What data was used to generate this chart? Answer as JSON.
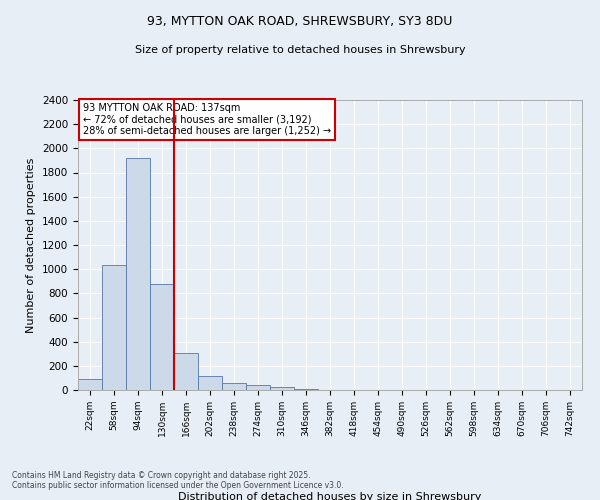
{
  "title_line1": "93, MYTTON OAK ROAD, SHREWSBURY, SY3 8DU",
  "title_line2": "Size of property relative to detached houses in Shrewsbury",
  "xlabel": "Distribution of detached houses by size in Shrewsbury",
  "ylabel": "Number of detached properties",
  "annotation_line1": "93 MYTTON OAK ROAD: 137sqm",
  "annotation_line2": "← 72% of detached houses are smaller (3,192)",
  "annotation_line3": "28% of semi-detached houses are larger (1,252) →",
  "footer_line1": "Contains HM Land Registry data © Crown copyright and database right 2025.",
  "footer_line2": "Contains public sector information licensed under the Open Government Licence v3.0.",
  "bar_color": "#ccd9e8",
  "bar_edge_color": "#5577aa",
  "background_color": "#e8eef5",
  "vline_color": "#cc0000",
  "annotation_box_color": "#cc0000",
  "categories": [
    "22sqm",
    "58sqm",
    "94sqm",
    "130sqm",
    "166sqm",
    "202sqm",
    "238sqm",
    "274sqm",
    "310sqm",
    "346sqm",
    "382sqm",
    "418sqm",
    "454sqm",
    "490sqm",
    "526sqm",
    "562sqm",
    "598sqm",
    "634sqm",
    "670sqm",
    "706sqm",
    "742sqm"
  ],
  "values": [
    90,
    1035,
    1920,
    880,
    310,
    120,
    55,
    45,
    28,
    12,
    0,
    0,
    0,
    0,
    0,
    0,
    0,
    0,
    0,
    0,
    0
  ],
  "vline_x": 3.5,
  "ylim": [
    0,
    2400
  ],
  "yticks": [
    0,
    200,
    400,
    600,
    800,
    1000,
    1200,
    1400,
    1600,
    1800,
    2000,
    2200,
    2400
  ]
}
